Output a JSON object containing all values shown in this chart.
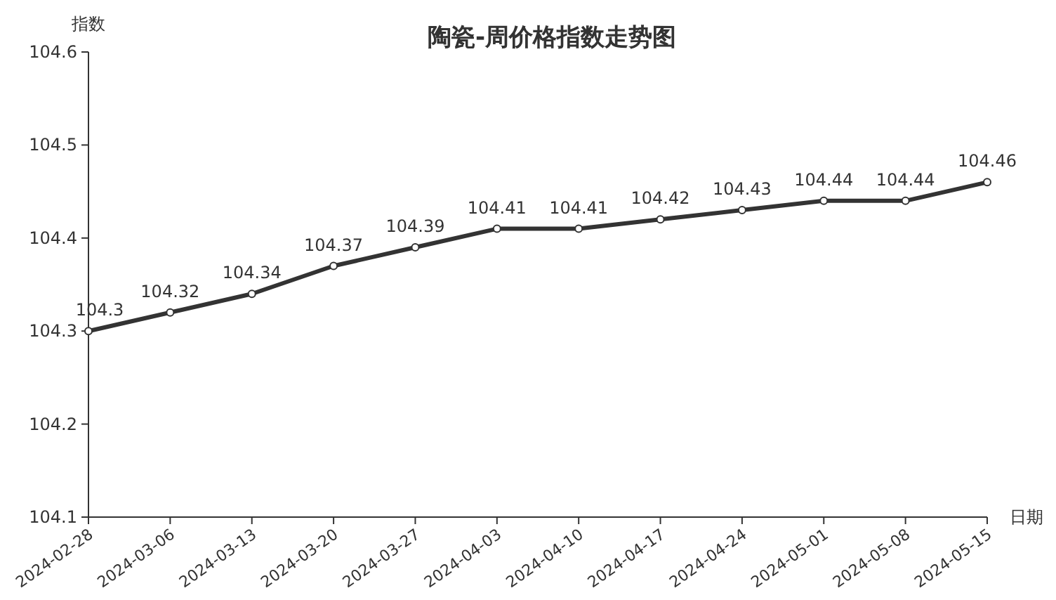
{
  "chart_data": {
    "type": "line",
    "title": "陶瓷-周价格指数走势图",
    "xlabel": "日期",
    "ylabel": "指数",
    "categories": [
      "2024-02-28",
      "2024-03-06",
      "2024-03-13",
      "2024-03-20",
      "2024-03-27",
      "2024-04-03",
      "2024-04-10",
      "2024-04-17",
      "2024-04-24",
      "2024-05-01",
      "2024-05-08",
      "2024-05-15"
    ],
    "values": [
      104.3,
      104.32,
      104.34,
      104.37,
      104.39,
      104.41,
      104.41,
      104.42,
      104.43,
      104.44,
      104.44,
      104.46
    ],
    "color": "#333333",
    "ylim": [
      104.1,
      104.6
    ],
    "yticks": [
      104.1,
      104.2,
      104.3,
      104.4,
      104.5,
      104.6
    ],
    "data_labels": true,
    "marker": "circle",
    "line_style": "solid"
  }
}
